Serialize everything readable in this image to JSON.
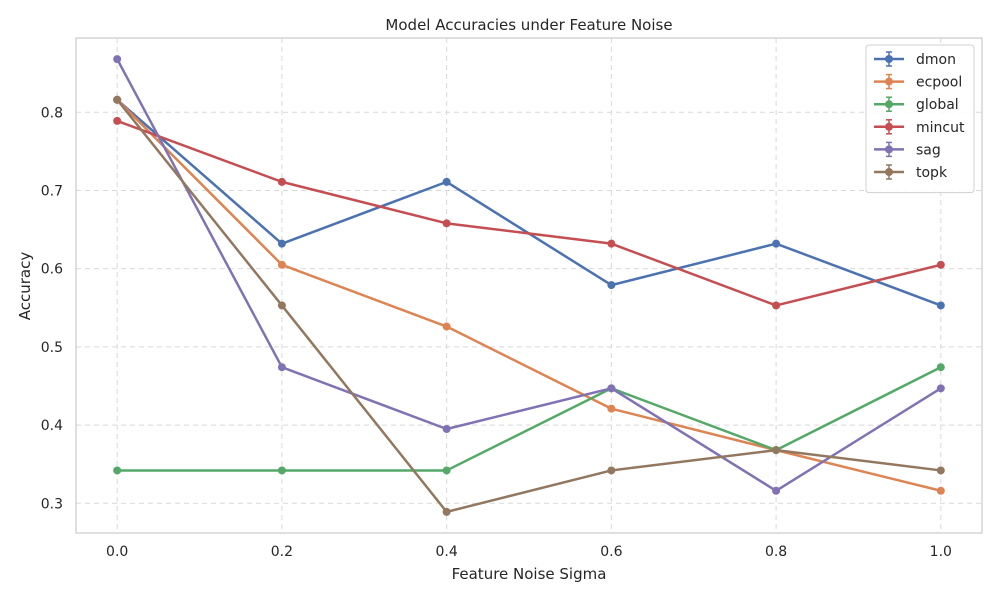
{
  "chart_data": {
    "type": "line",
    "title": "Model Accuracies under Feature Noise",
    "xlabel": "Feature Noise Sigma",
    "ylabel": "Accuracy",
    "x": [
      0.0,
      0.2,
      0.4,
      0.6,
      0.8,
      1.0
    ],
    "x_tick_labels": [
      "0.0",
      "0.2",
      "0.4",
      "0.6",
      "0.8",
      "1.0"
    ],
    "y_tick_labels": [
      "0.3",
      "0.4",
      "0.5",
      "0.6",
      "0.7",
      "0.8"
    ],
    "y_ticks": [
      0.3,
      0.4,
      0.5,
      0.6,
      0.7,
      0.8
    ],
    "xlim": [
      -0.05,
      1.05
    ],
    "ylim": [
      0.262,
      0.895
    ],
    "grid": true,
    "legend_position": "top-right",
    "series": [
      {
        "name": "dmon",
        "color": "#4c72b0",
        "values": [
          0.816,
          0.632,
          0.711,
          0.579,
          0.632,
          0.553
        ]
      },
      {
        "name": "ecpool",
        "color": "#dd8452",
        "values": [
          0.816,
          0.605,
          0.526,
          0.421,
          0.368,
          0.316
        ]
      },
      {
        "name": "global",
        "color": "#55a868",
        "values": [
          0.342,
          0.342,
          0.342,
          0.447,
          0.368,
          0.474
        ]
      },
      {
        "name": "mincut",
        "color": "#c44e52",
        "values": [
          0.789,
          0.711,
          0.658,
          0.632,
          0.553,
          0.605
        ]
      },
      {
        "name": "sag",
        "color": "#8172b3",
        "values": [
          0.868,
          0.474,
          0.395,
          0.447,
          0.316,
          0.447
        ]
      },
      {
        "name": "topk",
        "color": "#937860",
        "values": [
          0.816,
          0.553,
          0.289,
          0.342,
          0.368,
          0.342
        ]
      }
    ]
  }
}
